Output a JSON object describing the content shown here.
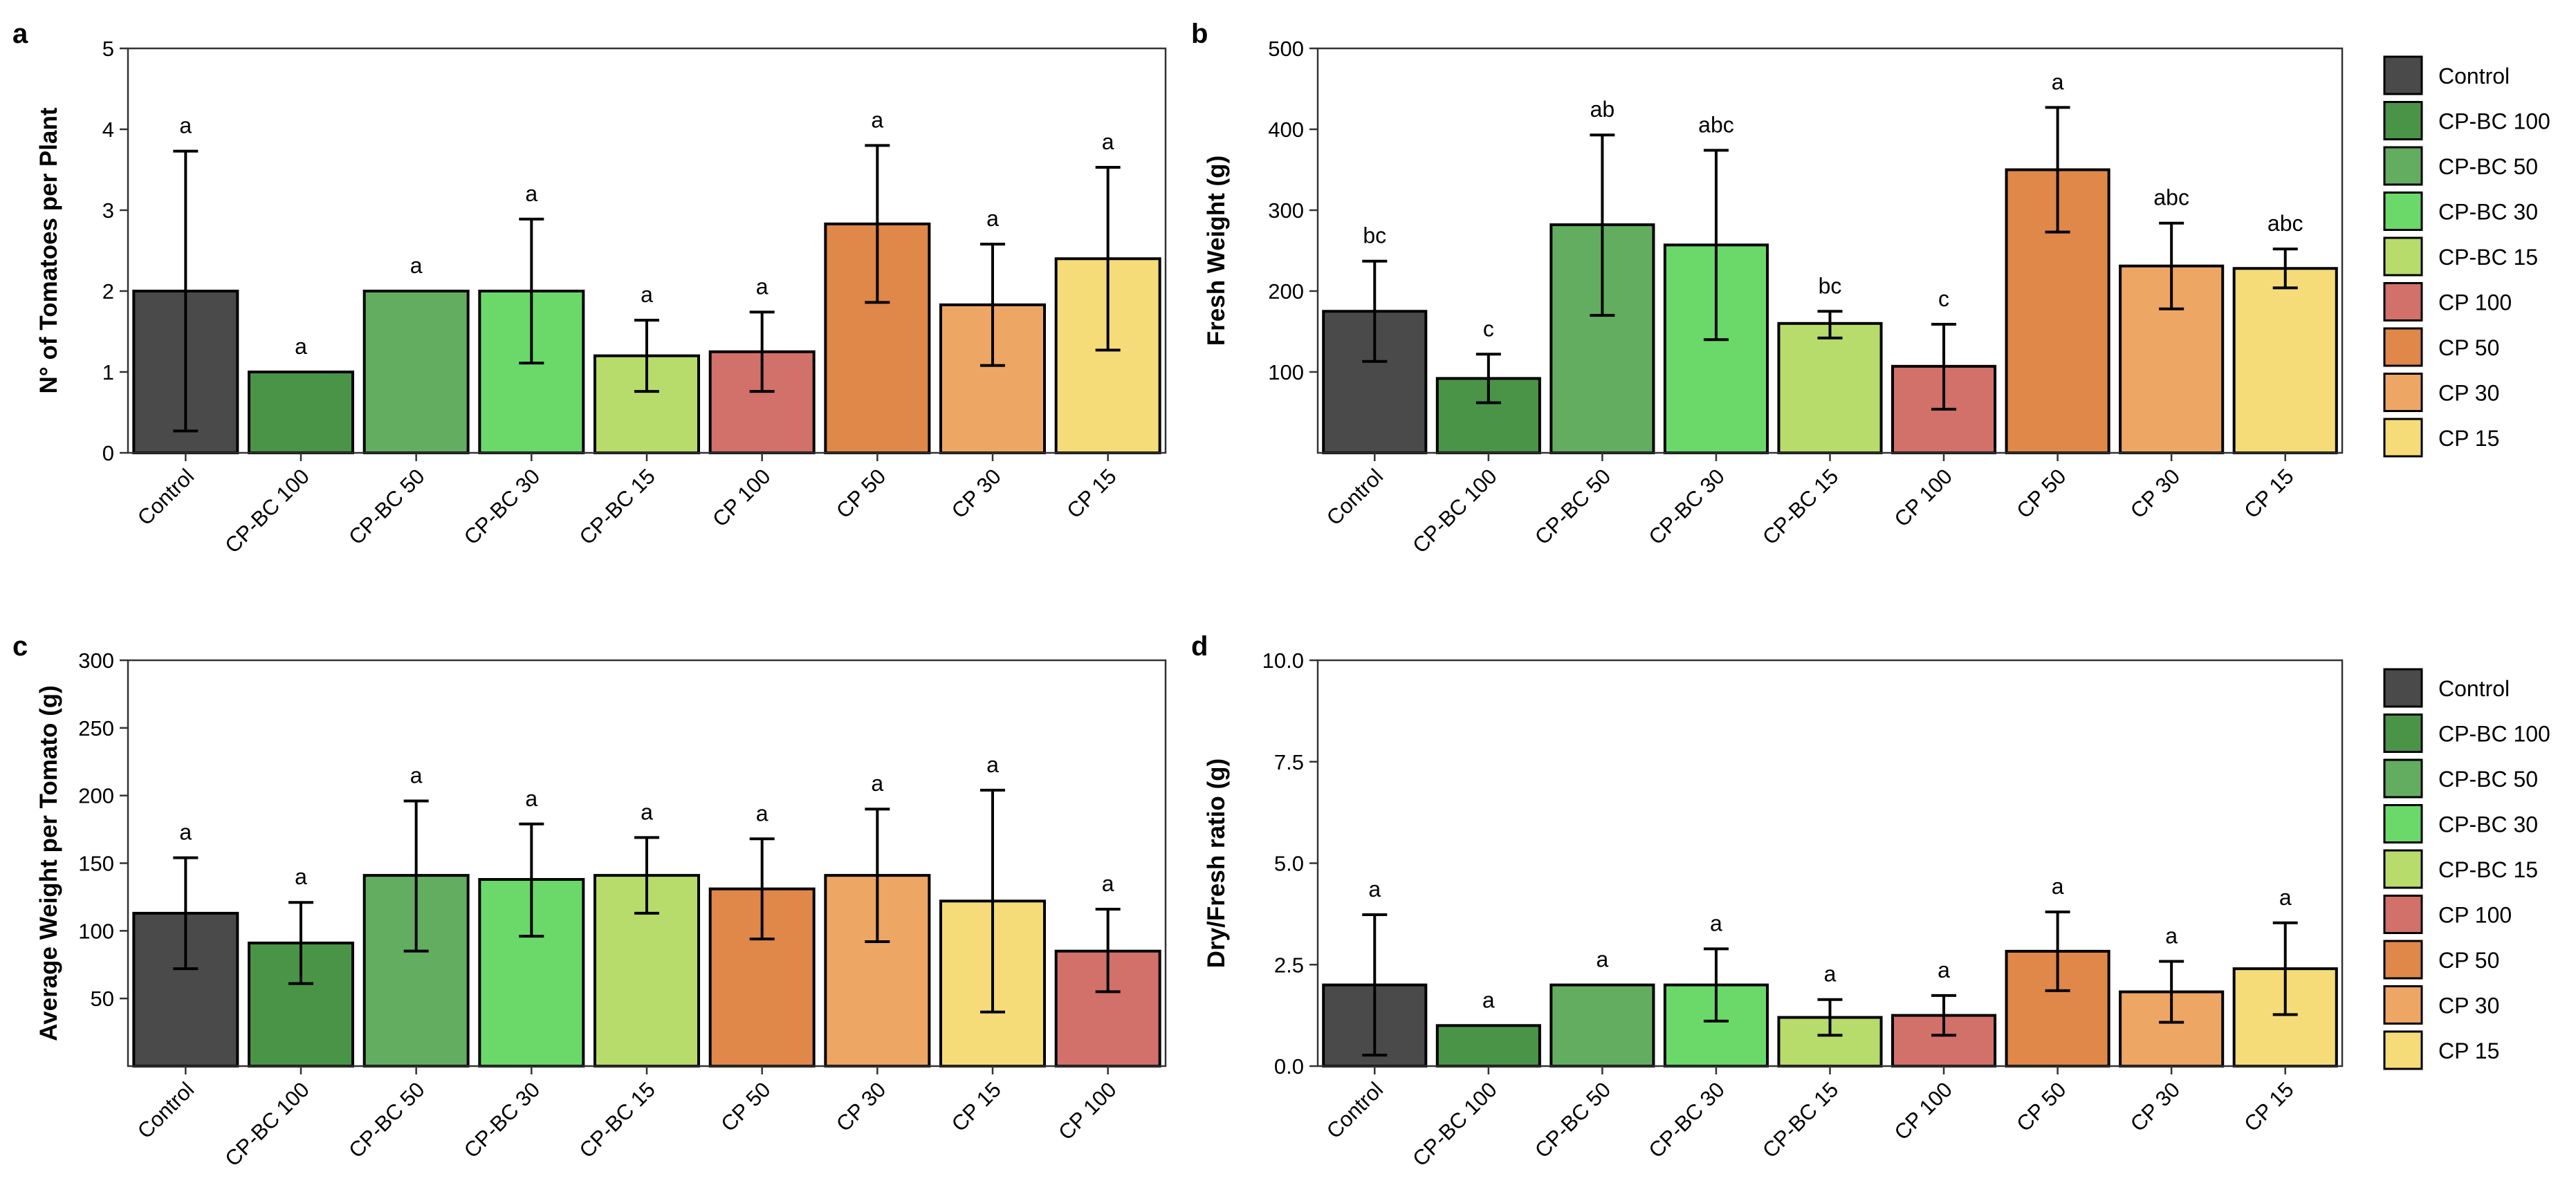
{
  "colors": {
    "Control": "#4a4a4a",
    "CP-BC 100": "#4a9447",
    "CP-BC 50": "#63ad61",
    "CP-BC 30": "#6ad96a",
    "CP-BC 15": "#b7dc6b",
    "CP 100": "#d2706a",
    "CP 50": "#e0874a",
    "CP 30": "#eea665",
    "CP 15": "#f5dc78",
    "error_bar": "#000000",
    "bar_stroke": "#000000"
  },
  "legend": {
    "entries": [
      "Control",
      "CP-BC 100",
      "CP-BC 50",
      "CP-BC 30",
      "CP-BC 15",
      "CP 100",
      "CP 50",
      "CP 30",
      "CP 15"
    ],
    "placement": "right"
  },
  "chart_data": [
    {
      "panel": "a",
      "type": "bar",
      "ylabel": "N° of Tomatoes per Plant",
      "xlabel": "",
      "ylim": [
        0,
        5
      ],
      "yticks": [
        "0",
        "1",
        "2",
        "3",
        "4",
        "5"
      ],
      "grid": false,
      "categories": [
        "Control",
        "CP-BC 100",
        "CP-BC 50",
        "CP-BC 30",
        "CP-BC 15",
        "CP 100",
        "CP 50",
        "CP 30",
        "CP 15"
      ],
      "values": [
        2.0,
        1.0,
        2.0,
        2.0,
        1.2,
        1.25,
        2.83,
        1.83,
        2.4
      ],
      "error_low": [
        0.27,
        1.0,
        2.0,
        1.11,
        0.76,
        0.76,
        1.86,
        1.08,
        1.27
      ],
      "error_high": [
        3.73,
        1.0,
        2.0,
        2.89,
        1.64,
        1.74,
        3.8,
        2.58,
        3.53
      ],
      "group_labels": [
        "a",
        "a",
        "a",
        "a",
        "a",
        "a",
        "a",
        "a",
        "a"
      ]
    },
    {
      "panel": "b",
      "type": "bar",
      "ylabel": "Fresh Weight (g)",
      "xlabel": "",
      "ylim": [
        0,
        500
      ],
      "yticks": [
        "100",
        "200",
        "300",
        "400",
        "500"
      ],
      "grid": false,
      "categories": [
        "Control",
        "CP-BC 100",
        "CP-BC 50",
        "CP-BC 30",
        "CP-BC 15",
        "CP 100",
        "CP 50",
        "CP 30",
        "CP 15"
      ],
      "values": [
        175,
        92,
        282,
        257,
        160,
        107,
        350,
        231,
        228
      ],
      "error_low": [
        113,
        62,
        170,
        140,
        142,
        54,
        273,
        178,
        204
      ],
      "error_high": [
        237,
        122,
        393,
        374,
        175,
        159,
        427,
        284,
        252
      ],
      "group_labels": [
        "bc",
        "c",
        "ab",
        "abc",
        "bc",
        "c",
        "a",
        "abc",
        "abc"
      ]
    },
    {
      "panel": "c",
      "type": "bar",
      "ylabel": "Average Weight per Tomato (g)",
      "xlabel": "",
      "ylim": [
        0,
        300
      ],
      "yticks": [
        "50",
        "100",
        "150",
        "200",
        "250",
        "300"
      ],
      "grid": false,
      "categories": [
        "Control",
        "CP-BC 100",
        "CP-BC 50",
        "CP-BC 30",
        "CP-BC 15",
        "CP 50",
        "CP 30",
        "CP 15",
        "CP 100"
      ],
      "values": [
        113,
        91,
        141,
        138,
        141,
        131,
        141,
        122,
        85
      ],
      "error_low": [
        72,
        61,
        85,
        96,
        113,
        94,
        92,
        40,
        55
      ],
      "error_high": [
        154,
        121,
        196,
        179,
        169,
        168,
        190,
        204,
        116
      ],
      "group_labels": [
        "a",
        "a",
        "a",
        "a",
        "a",
        "a",
        "a",
        "a",
        "a"
      ]
    },
    {
      "panel": "d",
      "type": "bar",
      "ylabel": "Dry/Fresh ratio (g)",
      "xlabel": "",
      "ylim": [
        0,
        10
      ],
      "yticks": [
        "0.0",
        "2.5",
        "5.0",
        "7.5",
        "10.0"
      ],
      "grid": false,
      "categories": [
        "Control",
        "CP-BC 100",
        "CP-BC 50",
        "CP-BC 30",
        "CP-BC 15",
        "CP 100",
        "CP 50",
        "CP 30",
        "CP 15"
      ],
      "values": [
        2.0,
        1.0,
        2.0,
        2.0,
        1.2,
        1.25,
        2.83,
        1.83,
        2.4
      ],
      "error_low": [
        0.27,
        1.0,
        2.0,
        1.11,
        0.76,
        0.76,
        1.86,
        1.08,
        1.27
      ],
      "error_high": [
        3.73,
        1.0,
        2.0,
        2.89,
        1.64,
        1.74,
        3.8,
        2.58,
        3.53
      ],
      "group_labels": [
        "a",
        "a",
        "a",
        "a",
        "a",
        "a",
        "a",
        "a",
        "a"
      ]
    }
  ]
}
